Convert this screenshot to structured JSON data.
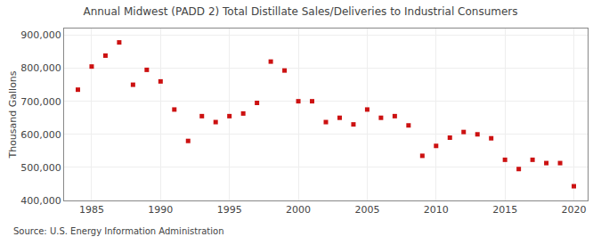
{
  "chart_data": {
    "type": "scatter",
    "title": "Annual Midwest (PADD 2) Total Distillate Sales/Deliveries to Industrial Consumers",
    "ylabel": "Thousand Gallons",
    "annotations": [
      "Source: U.S. Energy Information Administration"
    ],
    "x": [
      1984,
      1985,
      1986,
      1987,
      1988,
      1989,
      1990,
      1991,
      1992,
      1993,
      1994,
      1995,
      1996,
      1997,
      1998,
      1999,
      2000,
      2001,
      2002,
      2003,
      2004,
      2005,
      2006,
      2007,
      2008,
      2009,
      2010,
      2011,
      2012,
      2013,
      2014,
      2015,
      2016,
      2017,
      2018,
      2019,
      2020
    ],
    "values": [
      735000,
      805000,
      838000,
      878000,
      750000,
      795000,
      760000,
      675000,
      580000,
      655000,
      637000,
      655000,
      663000,
      695000,
      820000,
      793000,
      700000,
      700000,
      637000,
      650000,
      630000,
      675000,
      650000,
      655000,
      627000,
      535000,
      565000,
      590000,
      607000,
      600000,
      588000,
      523000,
      495000,
      523000,
      513000,
      513000,
      443000
    ],
    "color": "#cc1111",
    "marker": "square",
    "xlim": [
      1983,
      2021
    ],
    "ylim": [
      400000,
      920000
    ],
    "xticks": [
      1985,
      1990,
      1995,
      2000,
      2005,
      2010,
      2015,
      2020
    ],
    "yticks": [
      {
        "value": 400000,
        "label": "400,000"
      },
      {
        "value": 500000,
        "label": "500,000"
      },
      {
        "value": 600000,
        "label": "600,000"
      },
      {
        "value": 700000,
        "label": "700,000"
      },
      {
        "value": 800000,
        "label": "800,000"
      },
      {
        "value": 900000,
        "label": "900,000"
      }
    ],
    "grid": true
  }
}
